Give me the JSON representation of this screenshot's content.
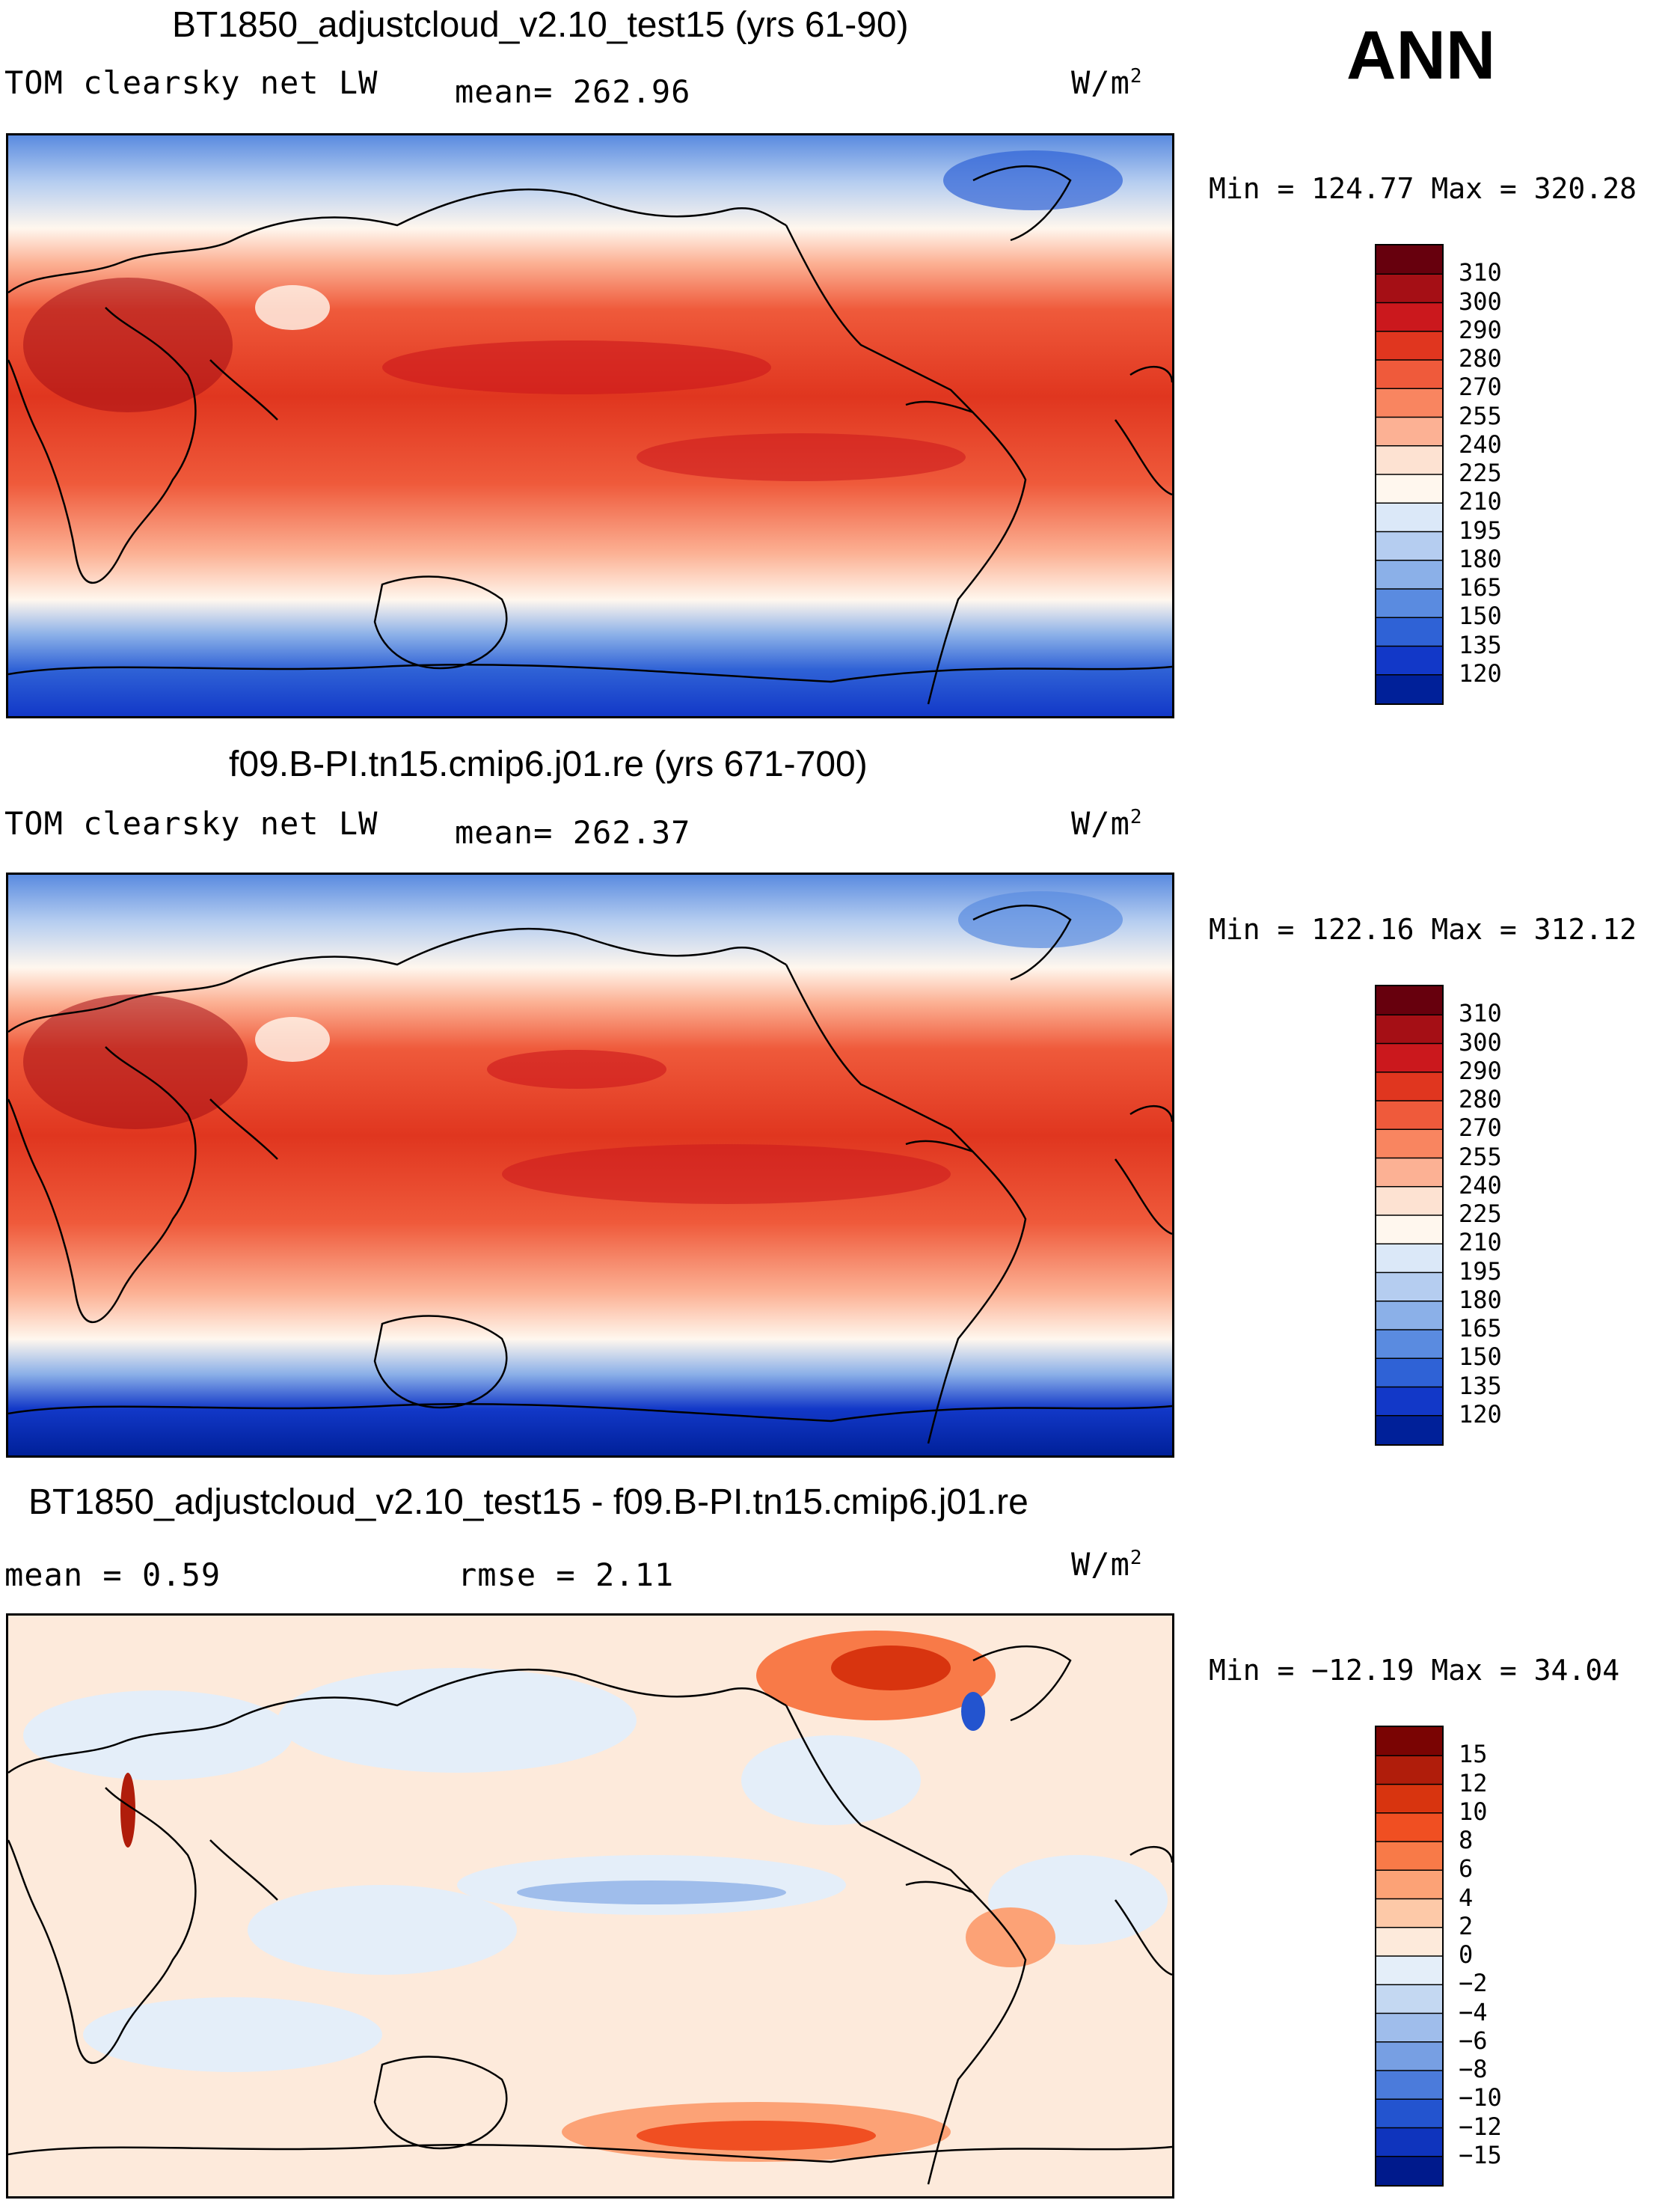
{
  "season": "ANN",
  "panels": [
    {
      "title": "BT1850_adjustcloud_v2.10_test15 (yrs 61-90)",
      "left_label": "TOM clearsky net LW",
      "stat1": "mean= 262.96",
      "stat2": "",
      "units": "W/m",
      "units_sup": "2",
      "minmax": "Min = 124.77 Max = 320.28",
      "colorbar": {
        "levels": [
          "310",
          "300",
          "290",
          "280",
          "270",
          "255",
          "240",
          "225",
          "210",
          "195",
          "180",
          "165",
          "150",
          "135",
          "120"
        ],
        "colors": [
          "#67000d",
          "#a50f15",
          "#cb181d",
          "#e0361f",
          "#ef5a3b",
          "#f98560",
          "#fcb194",
          "#fde2d2",
          "#fff7ee",
          "#dbe8f8",
          "#b5cdf0",
          "#8bb0e8",
          "#5a8be0",
          "#2f62d6",
          "#1238c8",
          "#002099"
        ]
      }
    },
    {
      "title": "f09.B-PI.tn15.cmip6.j01.re (yrs 671-700)",
      "left_label": "TOM clearsky net LW",
      "stat1": "mean= 262.37",
      "stat2": "",
      "units": "W/m",
      "units_sup": "2",
      "minmax": "Min = 122.16 Max = 312.12",
      "colorbar": {
        "levels": [
          "310",
          "300",
          "290",
          "280",
          "270",
          "255",
          "240",
          "225",
          "210",
          "195",
          "180",
          "165",
          "150",
          "135",
          "120"
        ],
        "colors": [
          "#67000d",
          "#a50f15",
          "#cb181d",
          "#e0361f",
          "#ef5a3b",
          "#f98560",
          "#fcb194",
          "#fde2d2",
          "#fff7ee",
          "#dbe8f8",
          "#b5cdf0",
          "#8bb0e8",
          "#5a8be0",
          "#2f62d6",
          "#1238c8",
          "#002099"
        ]
      }
    },
    {
      "title": "BT1850_adjustcloud_v2.10_test15 - f09.B-PI.tn15.cmip6.j01.re",
      "left_label": "mean =    0.59",
      "stat1": "rmse =    2.11",
      "stat2": "",
      "units": "W/m",
      "units_sup": "2",
      "minmax": "Min = −12.19 Max =  34.04",
      "colorbar": {
        "levels": [
          "15",
          "12",
          "10",
          "8",
          "6",
          "4",
          "2",
          "0",
          "−2",
          "−4",
          "−6",
          "−8",
          "−10",
          "−12",
          "−15"
        ],
        "colors": [
          "#7a0403",
          "#b01d0b",
          "#d8340f",
          "#f04f22",
          "#f87a48",
          "#fca276",
          "#fdc9a8",
          "#fdeadb",
          "#e4eef9",
          "#c4d8f2",
          "#9fbdeb",
          "#779fe3",
          "#4b7bdb",
          "#2354cf",
          "#0f34bd",
          "#001a8c"
        ]
      }
    }
  ]
}
